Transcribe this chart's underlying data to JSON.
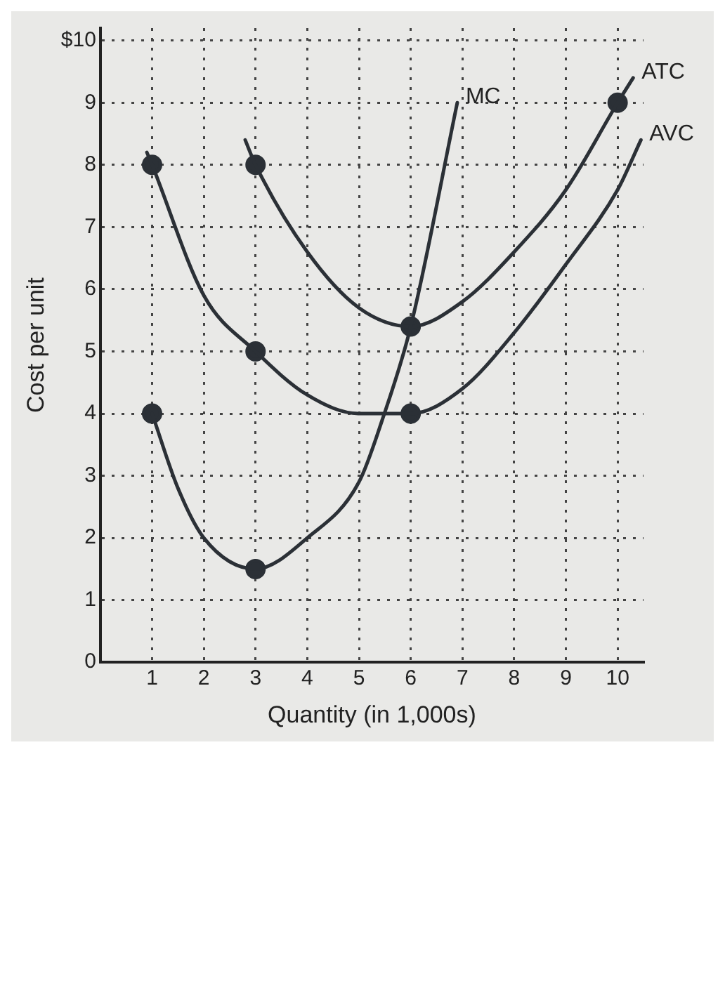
{
  "chart_data": {
    "type": "line",
    "xlabel": "Quantity (in 1,000s)",
    "ylabel": "Cost per unit",
    "xlim": [
      0,
      10.5
    ],
    "ylim": [
      0,
      10.2
    ],
    "xticks": [
      1,
      2,
      3,
      4,
      5,
      6,
      7,
      8,
      9,
      10
    ],
    "yticks": [
      0,
      1,
      2,
      3,
      4,
      5,
      6,
      7,
      8,
      9,
      {
        "value": 10,
        "label": "$10"
      }
    ],
    "grid": true,
    "legend": false,
    "marker": "none",
    "line_style": "solid",
    "series": [
      {
        "name": "MC",
        "color": "#2b3036",
        "x": [
          1,
          1.5,
          2,
          3,
          4,
          5,
          5.45,
          6,
          6.9
        ],
        "values": [
          4,
          2.8,
          2.0,
          1.5,
          2.0,
          2.9,
          3.9,
          5.4,
          9.0
        ]
      },
      {
        "name": "AVC",
        "color": "#2b3036",
        "x": [
          0.9,
          1,
          2,
          3,
          4,
          5,
          6,
          7,
          8,
          9,
          10,
          10.45
        ],
        "values": [
          8.2,
          8,
          5.9,
          5,
          4.3,
          4.0,
          4,
          4.4,
          5.3,
          6.4,
          7.6,
          8.4
        ]
      },
      {
        "name": "ATC",
        "color": "#2b3036",
        "x": [
          2.8,
          3,
          4,
          5,
          6,
          7,
          8,
          9,
          10,
          10.3
        ],
        "values": [
          8.4,
          8,
          6.6,
          5.7,
          5.4,
          5.8,
          6.6,
          7.6,
          9.0,
          9.4
        ]
      },
      {
        "type": "scatter",
        "marker": "circle",
        "color": "#2b3036",
        "x": [
          1,
          3,
          1,
          3,
          6,
          3,
          6,
          10
        ],
        "values": [
          4,
          1.5,
          8,
          5,
          4,
          8,
          5.4,
          9
        ]
      }
    ]
  }
}
